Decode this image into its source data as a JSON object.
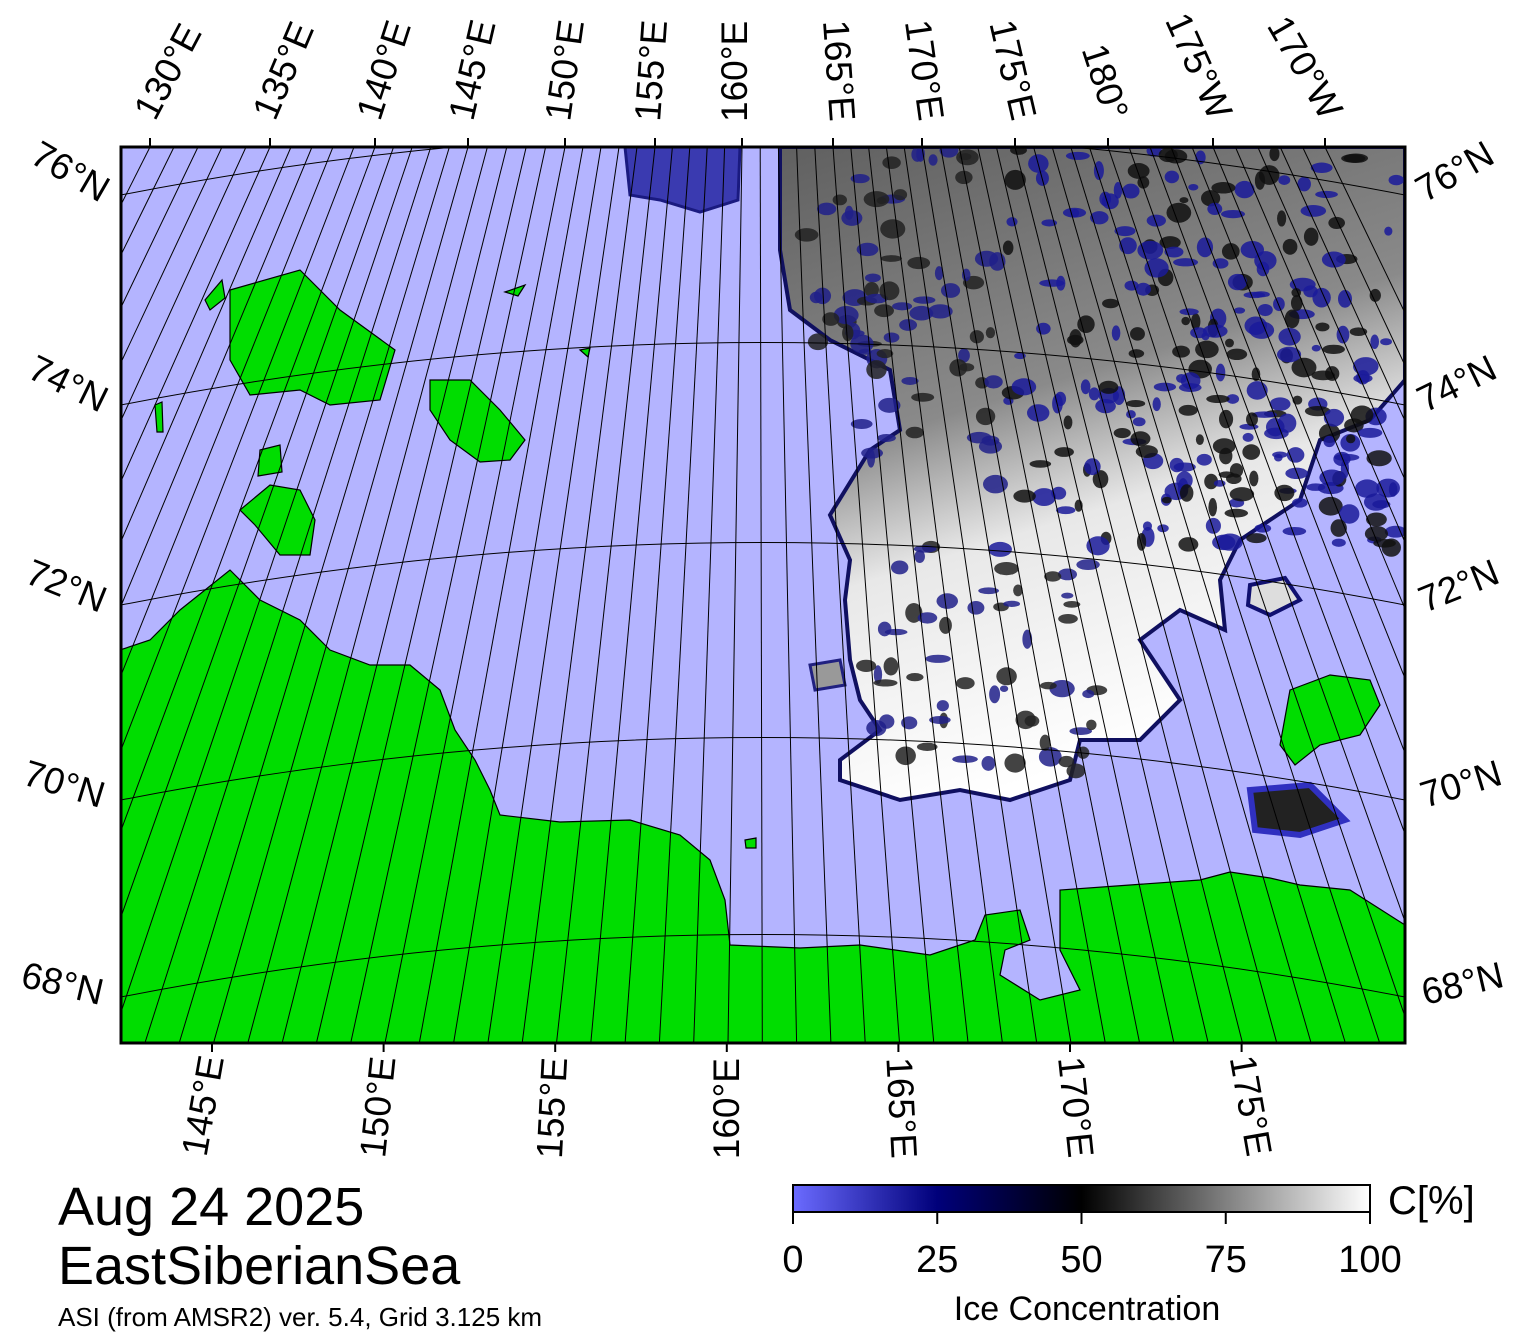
{
  "map": {
    "top_lon_labels": [
      "130°E",
      "135°E",
      "140°E",
      "145°E",
      "150°E",
      "155°E",
      "160°E",
      "165°E",
      "170°E",
      "175°E",
      "180°",
      "175°W",
      "170°W"
    ],
    "left_lat_labels": [
      "76°N",
      "74°N",
      "72°N",
      "70°N",
      "68°N"
    ],
    "right_lat_labels": [
      "76°N",
      "74°N",
      "72°N",
      "70°N",
      "68°N"
    ],
    "bottom_lon_labels": [
      "145°E",
      "150°E",
      "155°E",
      "160°E",
      "165°E",
      "170°E",
      "175°E"
    ]
  },
  "date": "Aug 24 2025",
  "region": "EastSiberianSea",
  "source": "ASI (from AMSR2) ver. 5.4,  Grid 3.125 km",
  "colorbar": {
    "range": [
      0,
      100
    ],
    "ticks": [
      0,
      25,
      50,
      75,
      100
    ],
    "colors": [
      "#6b6bff",
      "#00007a",
      "#000000",
      "#808080",
      "#ffffff"
    ],
    "unit": "C[%]",
    "label": "Ice Concentration"
  }
}
